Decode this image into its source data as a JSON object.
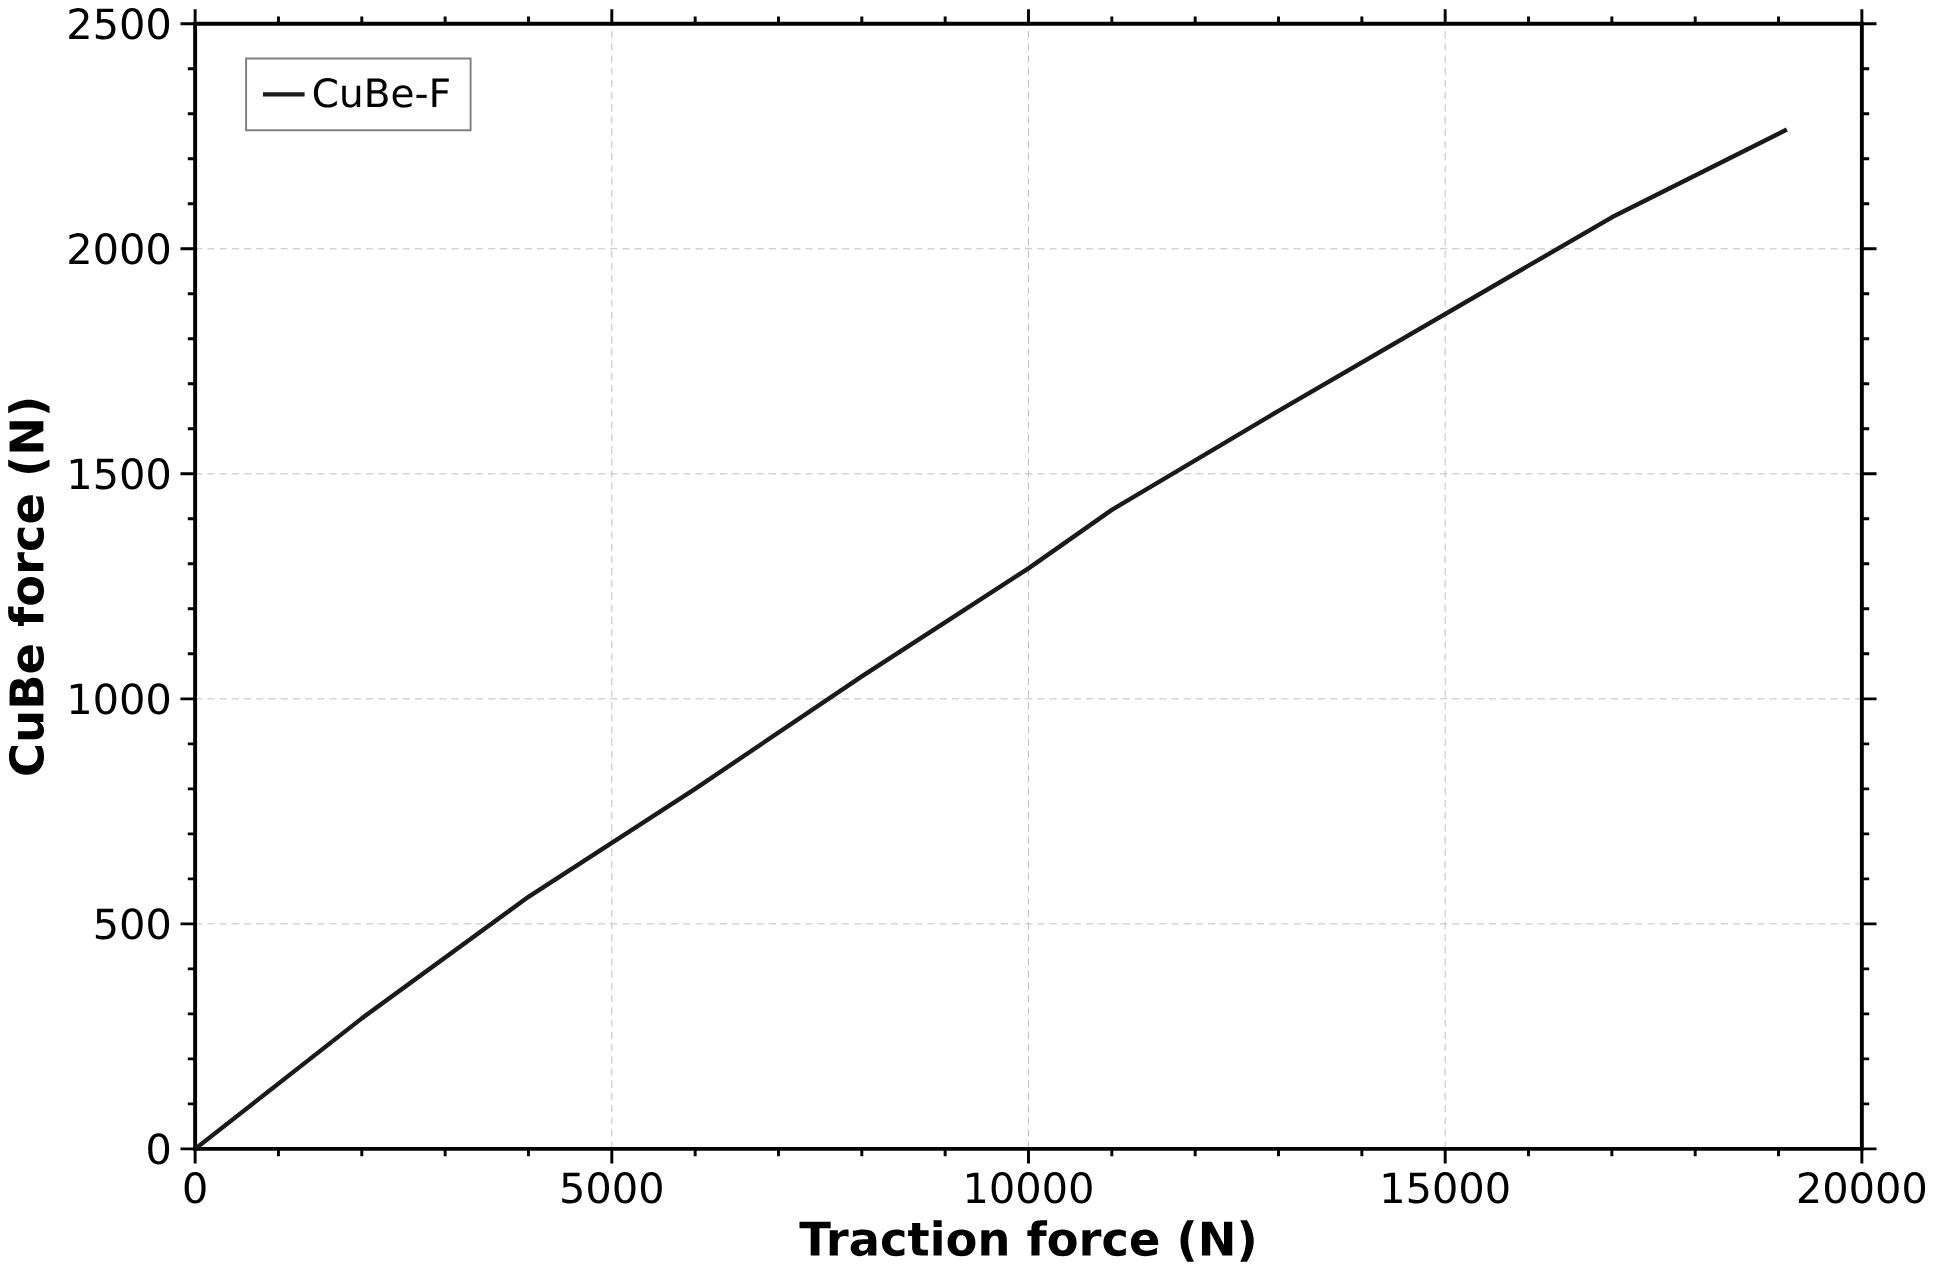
{
  "chart_data": {
    "type": "line",
    "xlabel": "Traction force (N)",
    "ylabel": "CuBe force (N)",
    "xlim": [
      0,
      20000
    ],
    "ylim": [
      0,
      2500
    ],
    "xticks": [
      0,
      5000,
      10000,
      15000,
      20000
    ],
    "yticks": [
      0,
      500,
      1000,
      1500,
      2000,
      2500
    ],
    "grid": true,
    "legend": "top left",
    "marker": "none",
    "line_style": "solid",
    "series": [
      {
        "name": "CuBe-F",
        "color": "#1a1a1a",
        "x": [
          0,
          2000,
          4000,
          6000,
          8000,
          10000,
          11000,
          13000,
          15000,
          17000,
          19100
        ],
        "values": [
          0,
          290,
          560,
          800,
          1050,
          1290,
          1420,
          1640,
          1855,
          2070,
          2265
        ]
      }
    ]
  }
}
